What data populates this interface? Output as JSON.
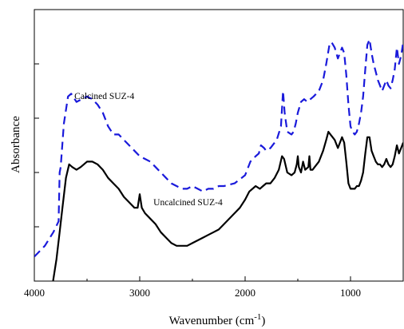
{
  "chart_data": {
    "type": "line",
    "title": "",
    "xlabel": "Wavenumber (cm",
    "xlabel_superscript": "-1",
    "xlabel_suffix": ")",
    "ylabel": "Absorbance",
    "xlim": [
      4000,
      500
    ],
    "x_reversed": true,
    "ylim": [
      0,
      100
    ],
    "y_tick_labels_shown": false,
    "x_ticks": [
      4000,
      3000,
      2000,
      1000
    ],
    "grid": false,
    "series": [
      {
        "name": "Calcined SUZ-4",
        "color": "#1a1adb",
        "style": "dashed",
        "points": [
          [
            4000,
            9
          ],
          [
            3900,
            13
          ],
          [
            3820,
            18
          ],
          [
            3770,
            22
          ],
          [
            3760,
            40
          ],
          [
            3750,
            42
          ],
          [
            3720,
            58
          ],
          [
            3680,
            68
          ],
          [
            3650,
            69
          ],
          [
            3600,
            66
          ],
          [
            3550,
            67
          ],
          [
            3500,
            68
          ],
          [
            3450,
            67
          ],
          [
            3400,
            65
          ],
          [
            3350,
            62
          ],
          [
            3300,
            57
          ],
          [
            3250,
            54
          ],
          [
            3200,
            54
          ],
          [
            3150,
            52
          ],
          [
            3100,
            50
          ],
          [
            3050,
            48
          ],
          [
            3000,
            46
          ],
          [
            2950,
            45
          ],
          [
            2900,
            44
          ],
          [
            2850,
            42
          ],
          [
            2800,
            40
          ],
          [
            2750,
            38
          ],
          [
            2700,
            36
          ],
          [
            2650,
            35
          ],
          [
            2600,
            34
          ],
          [
            2550,
            34
          ],
          [
            2500,
            35
          ],
          [
            2450,
            34
          ],
          [
            2400,
            33
          ],
          [
            2350,
            34
          ],
          [
            2300,
            34
          ],
          [
            2250,
            35
          ],
          [
            2200,
            35
          ],
          [
            2100,
            36
          ],
          [
            2000,
            39
          ],
          [
            1950,
            44
          ],
          [
            1900,
            46
          ],
          [
            1870,
            47
          ],
          [
            1850,
            50
          ],
          [
            1820,
            49
          ],
          [
            1800,
            48
          ],
          [
            1760,
            49
          ],
          [
            1700,
            52
          ],
          [
            1660,
            57
          ],
          [
            1640,
            70
          ],
          [
            1625,
            62
          ],
          [
            1600,
            55
          ],
          [
            1560,
            54
          ],
          [
            1540,
            55
          ],
          [
            1520,
            58
          ],
          [
            1500,
            62
          ],
          [
            1470,
            66
          ],
          [
            1440,
            67
          ],
          [
            1410,
            66
          ],
          [
            1380,
            67
          ],
          [
            1350,
            68
          ],
          [
            1300,
            70
          ],
          [
            1260,
            74
          ],
          [
            1230,
            80
          ],
          [
            1200,
            87
          ],
          [
            1180,
            88
          ],
          [
            1150,
            86
          ],
          [
            1120,
            82
          ],
          [
            1100,
            84
          ],
          [
            1080,
            86
          ],
          [
            1060,
            84
          ],
          [
            1040,
            76
          ],
          [
            1020,
            65
          ],
          [
            1000,
            57
          ],
          [
            980,
            55
          ],
          [
            960,
            54
          ],
          [
            940,
            55
          ],
          [
            920,
            58
          ],
          [
            900,
            62
          ],
          [
            880,
            68
          ],
          [
            860,
            78
          ],
          [
            840,
            87
          ],
          [
            820,
            89
          ],
          [
            800,
            84
          ],
          [
            780,
            80
          ],
          [
            760,
            77
          ],
          [
            740,
            74
          ],
          [
            720,
            72
          ],
          [
            700,
            70
          ],
          [
            680,
            72
          ],
          [
            660,
            74
          ],
          [
            640,
            72
          ],
          [
            620,
            71
          ],
          [
            600,
            74
          ],
          [
            580,
            78
          ],
          [
            560,
            86
          ],
          [
            540,
            80
          ],
          [
            520,
            83
          ],
          [
            500,
            88
          ]
        ]
      },
      {
        "name": "Uncalcined SUZ-4",
        "color": "#000000",
        "style": "solid",
        "points": [
          [
            3830,
            -2
          ],
          [
            3790,
            8
          ],
          [
            3760,
            18
          ],
          [
            3730,
            28
          ],
          [
            3700,
            38
          ],
          [
            3670,
            43
          ],
          [
            3640,
            42
          ],
          [
            3600,
            41
          ],
          [
            3560,
            42
          ],
          [
            3500,
            44
          ],
          [
            3450,
            44
          ],
          [
            3400,
            43
          ],
          [
            3350,
            41
          ],
          [
            3300,
            38
          ],
          [
            3250,
            36
          ],
          [
            3200,
            34
          ],
          [
            3150,
            31
          ],
          [
            3100,
            29
          ],
          [
            3050,
            27
          ],
          [
            3020,
            27
          ],
          [
            3000,
            32
          ],
          [
            2980,
            27
          ],
          [
            2950,
            25
          ],
          [
            2900,
            23
          ],
          [
            2850,
            21
          ],
          [
            2800,
            18
          ],
          [
            2750,
            16
          ],
          [
            2700,
            14
          ],
          [
            2650,
            13
          ],
          [
            2600,
            13
          ],
          [
            2550,
            13
          ],
          [
            2500,
            14
          ],
          [
            2450,
            15
          ],
          [
            2400,
            16
          ],
          [
            2350,
            17
          ],
          [
            2300,
            18
          ],
          [
            2250,
            19
          ],
          [
            2200,
            21
          ],
          [
            2100,
            25
          ],
          [
            2050,
            27
          ],
          [
            2000,
            30
          ],
          [
            1960,
            33
          ],
          [
            1900,
            35
          ],
          [
            1860,
            34
          ],
          [
            1830,
            35
          ],
          [
            1800,
            36
          ],
          [
            1760,
            36
          ],
          [
            1720,
            38
          ],
          [
            1680,
            41
          ],
          [
            1650,
            46
          ],
          [
            1630,
            45
          ],
          [
            1600,
            40
          ],
          [
            1560,
            39
          ],
          [
            1530,
            40
          ],
          [
            1510,
            43
          ],
          [
            1500,
            46
          ],
          [
            1490,
            42
          ],
          [
            1470,
            40
          ],
          [
            1450,
            44
          ],
          [
            1430,
            41
          ],
          [
            1400,
            42
          ],
          [
            1390,
            46
          ],
          [
            1380,
            41
          ],
          [
            1360,
            41
          ],
          [
            1340,
            42
          ],
          [
            1300,
            44
          ],
          [
            1260,
            48
          ],
          [
            1230,
            52
          ],
          [
            1210,
            55
          ],
          [
            1190,
            54
          ],
          [
            1150,
            52
          ],
          [
            1120,
            49
          ],
          [
            1100,
            51
          ],
          [
            1080,
            53
          ],
          [
            1060,
            51
          ],
          [
            1040,
            44
          ],
          [
            1020,
            36
          ],
          [
            1000,
            34
          ],
          [
            980,
            34
          ],
          [
            960,
            34
          ],
          [
            940,
            35
          ],
          [
            920,
            35
          ],
          [
            900,
            37
          ],
          [
            880,
            40
          ],
          [
            860,
            47
          ],
          [
            840,
            53
          ],
          [
            820,
            53
          ],
          [
            800,
            48
          ],
          [
            780,
            46
          ],
          [
            760,
            44
          ],
          [
            740,
            43
          ],
          [
            720,
            43
          ],
          [
            700,
            42
          ],
          [
            680,
            43
          ],
          [
            660,
            45
          ],
          [
            640,
            43
          ],
          [
            620,
            42
          ],
          [
            600,
            43
          ],
          [
            580,
            46
          ],
          [
            560,
            50
          ],
          [
            540,
            47
          ],
          [
            520,
            49
          ],
          [
            500,
            51
          ]
        ]
      }
    ],
    "annotations": [
      {
        "text": "Calcined SUZ-4",
        "x": 3620,
        "y": 67
      },
      {
        "text": "Uncalcined SUZ-4",
        "x": 2870,
        "y": 28
      }
    ]
  }
}
